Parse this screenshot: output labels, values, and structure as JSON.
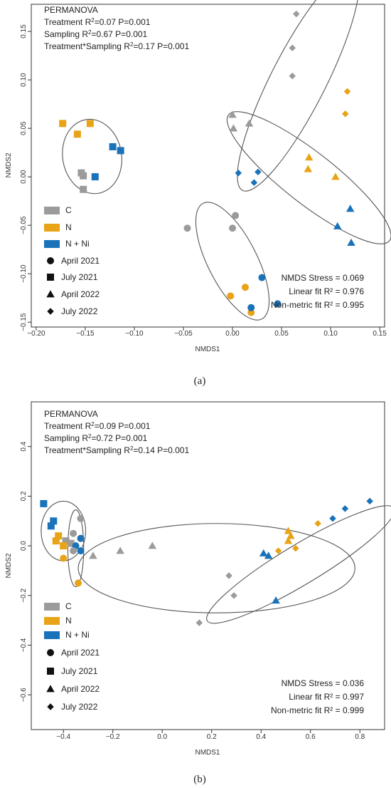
{
  "colors": {
    "C": "#9b9b9b",
    "N": "#e8a317",
    "N + Ni": "#1a72b8"
  },
  "legend": {
    "treatments": [
      "C",
      "N",
      "N + Ni"
    ],
    "samplings": [
      {
        "label": "April 2021",
        "shape": "circle"
      },
      {
        "label": "July 2021",
        "shape": "square"
      },
      {
        "label": "April 2022",
        "shape": "triangle"
      },
      {
        "label": "July 2022",
        "shape": "diamond"
      }
    ]
  },
  "chart_data": [
    {
      "type": "scatter",
      "panel_label": "(a)",
      "xlabel": "NMDS1",
      "ylabel": "NMDS2",
      "xlim": [
        -0.205,
        0.155
      ],
      "ylim": [
        -0.155,
        0.178
      ],
      "xticks": [
        -0.2,
        -0.15,
        -0.1,
        -0.05,
        0.0,
        0.05,
        0.1,
        0.15
      ],
      "xticklabels": [
        "−0.20",
        "−0.15",
        "−0.10",
        "−0.05",
        "0.00",
        "0.05",
        "0.10",
        "0.15"
      ],
      "yticks": [
        -0.15,
        -0.1,
        -0.05,
        0.0,
        0.05,
        0.1,
        0.15
      ],
      "yticklabels": [
        "−0.15",
        "−0.10",
        "−0.05",
        "0.00",
        "0.05",
        "0.10",
        "0.15"
      ],
      "permanova": {
        "title": "PERMANOVA",
        "lines": [
          {
            "name": "Treatment R",
            "stats": "=0.07 P=0.001"
          },
          {
            "name": "Sampling R",
            "stats": "=0.67 P=0.001"
          },
          {
            "name": "Treatment*Sampling R",
            "stats": "=0.17 P=0.001"
          }
        ]
      },
      "fit": [
        "NMDS Stress = 0.069",
        "Linear fit R² = 0.976",
        "Non-metric fit R² = 0.995"
      ],
      "points": [
        {
          "t": "N",
          "s": "square",
          "x": -0.173,
          "y": 0.055
        },
        {
          "t": "N",
          "s": "square",
          "x": -0.145,
          "y": 0.055
        },
        {
          "t": "N",
          "s": "square",
          "x": -0.158,
          "y": 0.044
        },
        {
          "t": "N + Ni",
          "s": "square",
          "x": -0.122,
          "y": 0.031
        },
        {
          "t": "N + Ni",
          "s": "square",
          "x": -0.114,
          "y": 0.027
        },
        {
          "t": "N + Ni",
          "s": "square",
          "x": -0.14,
          "y": 0.0
        },
        {
          "t": "C",
          "s": "square",
          "x": -0.154,
          "y": 0.004
        },
        {
          "t": "C",
          "s": "square",
          "x": -0.152,
          "y": 0.001
        },
        {
          "t": "C",
          "s": "square",
          "x": -0.152,
          "y": -0.013
        },
        {
          "t": "C",
          "s": "diamond",
          "x": 0.065,
          "y": 0.168
        },
        {
          "t": "C",
          "s": "diamond",
          "x": 0.061,
          "y": 0.133
        },
        {
          "t": "C",
          "s": "diamond",
          "x": 0.061,
          "y": 0.104
        },
        {
          "t": "N",
          "s": "diamond",
          "x": 0.117,
          "y": 0.088
        },
        {
          "t": "N",
          "s": "diamond",
          "x": 0.115,
          "y": 0.065
        },
        {
          "t": "N + Ni",
          "s": "diamond",
          "x": 0.006,
          "y": 0.004
        },
        {
          "t": "N + Ni",
          "s": "diamond",
          "x": 0.026,
          "y": 0.005
        },
        {
          "t": "N + Ni",
          "s": "diamond",
          "x": 0.022,
          "y": -0.006
        },
        {
          "t": "C",
          "s": "triangle",
          "x": 0.0,
          "y": 0.064
        },
        {
          "t": "C",
          "s": "triangle",
          "x": 0.001,
          "y": 0.05
        },
        {
          "t": "C",
          "s": "triangle",
          "x": 0.017,
          "y": 0.055
        },
        {
          "t": "N",
          "s": "triangle",
          "x": 0.078,
          "y": 0.02
        },
        {
          "t": "N",
          "s": "triangle",
          "x": 0.077,
          "y": 0.008
        },
        {
          "t": "N",
          "s": "triangle",
          "x": 0.105,
          "y": 0.0
        },
        {
          "t": "N + Ni",
          "s": "triangle",
          "x": 0.12,
          "y": -0.033
        },
        {
          "t": "N + Ni",
          "s": "triangle",
          "x": 0.107,
          "y": -0.051
        },
        {
          "t": "N + Ni",
          "s": "triangle",
          "x": 0.121,
          "y": -0.068
        },
        {
          "t": "C",
          "s": "circle",
          "x": -0.046,
          "y": -0.053
        },
        {
          "t": "C",
          "s": "circle",
          "x": 0.003,
          "y": -0.04
        },
        {
          "t": "C",
          "s": "circle",
          "x": 0.0,
          "y": -0.053
        },
        {
          "t": "N",
          "s": "circle",
          "x": -0.002,
          "y": -0.123
        },
        {
          "t": "N",
          "s": "circle",
          "x": 0.013,
          "y": -0.114
        },
        {
          "t": "N",
          "s": "circle",
          "x": 0.019,
          "y": -0.14
        },
        {
          "t": "N + Ni",
          "s": "circle",
          "x": 0.03,
          "y": -0.104
        },
        {
          "t": "N + Ni",
          "s": "circle",
          "x": 0.019,
          "y": -0.135
        },
        {
          "t": "N + Ni",
          "s": "circle",
          "x": 0.046,
          "y": -0.131
        }
      ],
      "ellipses": [
        {
          "cx": -0.143,
          "cy": 0.021,
          "rx": 0.03,
          "ry": 0.038,
          "angle": 10
        },
        {
          "cx": 0.067,
          "cy": 0.099,
          "rx": 0.125,
          "ry": 0.028,
          "angle": 63
        },
        {
          "cx": 0.078,
          "cy": -0.001,
          "rx": 0.104,
          "ry": 0.026,
          "angle": -38
        },
        {
          "cx": 0.0,
          "cy": -0.087,
          "rx": 0.066,
          "ry": 0.025,
          "angle": -63
        }
      ]
    },
    {
      "type": "scatter",
      "panel_label": "(b)",
      "xlabel": "NMDS1",
      "ylabel": "NMDS2",
      "xlim": [
        -0.53,
        0.9
      ],
      "ylim": [
        -0.74,
        0.58
      ],
      "xticks": [
        -0.4,
        -0.2,
        0.0,
        0.2,
        0.4,
        0.6,
        0.8
      ],
      "xticklabels": [
        "−0.4",
        "−0.2",
        "0.0",
        "0.2",
        "0.4",
        "0.6",
        "0.8"
      ],
      "yticks": [
        -0.6,
        -0.4,
        -0.2,
        0.0,
        0.2,
        0.4
      ],
      "yticklabels": [
        "−0.6",
        "−0.4",
        "−0.2",
        "0.0",
        "0.2",
        "0.4"
      ],
      "permanova": {
        "title": "PERMANOVA",
        "lines": [
          {
            "name": "Treatment R",
            "stats": "=0.09 P=0.001"
          },
          {
            "name": "Sampling R",
            "stats": "=0.72 P=0.001"
          },
          {
            "name": "Treatment*Sampling R",
            "stats": "=0.14 P=0.001"
          }
        ]
      },
      "fit": [
        "NMDS Stress = 0.036",
        "Linear fit  R² = 0.997",
        "Non-metric fit  R² = 0.999"
      ],
      "points": [
        {
          "t": "N + Ni",
          "s": "square",
          "x": -0.48,
          "y": 0.17
        },
        {
          "t": "N + Ni",
          "s": "square",
          "x": -0.44,
          "y": 0.1
        },
        {
          "t": "N + Ni",
          "s": "square",
          "x": -0.45,
          "y": 0.08
        },
        {
          "t": "N",
          "s": "square",
          "x": -0.42,
          "y": 0.04
        },
        {
          "t": "N",
          "s": "square",
          "x": -0.43,
          "y": 0.02
        },
        {
          "t": "C",
          "s": "square",
          "x": -0.39,
          "y": 0.02
        },
        {
          "t": "C",
          "s": "square",
          "x": -0.37,
          "y": 0.01
        },
        {
          "t": "N",
          "s": "square",
          "x": -0.4,
          "y": 0.0
        },
        {
          "t": "C",
          "s": "circle",
          "x": -0.33,
          "y": 0.11
        },
        {
          "t": "C",
          "s": "circle",
          "x": -0.36,
          "y": 0.05
        },
        {
          "t": "N + Ni",
          "s": "circle",
          "x": -0.33,
          "y": 0.03
        },
        {
          "t": "N + Ni",
          "s": "circle",
          "x": -0.35,
          "y": 0.0
        },
        {
          "t": "N + Ni",
          "s": "circle",
          "x": -0.33,
          "y": -0.02
        },
        {
          "t": "C",
          "s": "circle",
          "x": -0.36,
          "y": -0.02
        },
        {
          "t": "N",
          "s": "circle",
          "x": -0.4,
          "y": -0.05
        },
        {
          "t": "N",
          "s": "circle",
          "x": -0.34,
          "y": -0.15
        },
        {
          "t": "C",
          "s": "triangle",
          "x": -0.28,
          "y": -0.04
        },
        {
          "t": "C",
          "s": "triangle",
          "x": -0.17,
          "y": -0.02
        },
        {
          "t": "C",
          "s": "triangle",
          "x": -0.04,
          "y": 0.0
        },
        {
          "t": "N + Ni",
          "s": "triangle",
          "x": 0.41,
          "y": -0.03
        },
        {
          "t": "N + Ni",
          "s": "triangle",
          "x": 0.43,
          "y": -0.04
        },
        {
          "t": "N",
          "s": "triangle",
          "x": 0.51,
          "y": 0.06
        },
        {
          "t": "N",
          "s": "triangle",
          "x": 0.52,
          "y": 0.04
        },
        {
          "t": "N",
          "s": "triangle",
          "x": 0.51,
          "y": 0.02
        },
        {
          "t": "N + Ni",
          "s": "triangle",
          "x": 0.46,
          "y": -0.22
        },
        {
          "t": "N + Ni",
          "s": "diamond",
          "x": 0.84,
          "y": 0.18
        },
        {
          "t": "N + Ni",
          "s": "diamond",
          "x": 0.74,
          "y": 0.15
        },
        {
          "t": "N + Ni",
          "s": "diamond",
          "x": 0.69,
          "y": 0.11
        },
        {
          "t": "N",
          "s": "diamond",
          "x": 0.63,
          "y": 0.09
        },
        {
          "t": "N",
          "s": "diamond",
          "x": 0.54,
          "y": -0.01
        },
        {
          "t": "N",
          "s": "diamond",
          "x": 0.47,
          "y": -0.02
        },
        {
          "t": "C",
          "s": "diamond",
          "x": 0.27,
          "y": -0.12
        },
        {
          "t": "C",
          "s": "diamond",
          "x": 0.29,
          "y": -0.2
        },
        {
          "t": "C",
          "s": "diamond",
          "x": 0.15,
          "y": -0.31
        }
      ],
      "ellipses": [
        {
          "cx": -0.4,
          "cy": 0.06,
          "rx": 0.09,
          "ry": 0.12,
          "angle": 0
        },
        {
          "cx": -0.35,
          "cy": -0.01,
          "rx": 0.032,
          "ry": 0.155,
          "angle": 0
        },
        {
          "cx": 0.22,
          "cy": -0.09,
          "rx": 0.56,
          "ry": 0.18,
          "angle": 0
        },
        {
          "cx": 0.56,
          "cy": -0.075,
          "rx": 0.44,
          "ry": 0.08,
          "angle": 31
        }
      ]
    }
  ]
}
